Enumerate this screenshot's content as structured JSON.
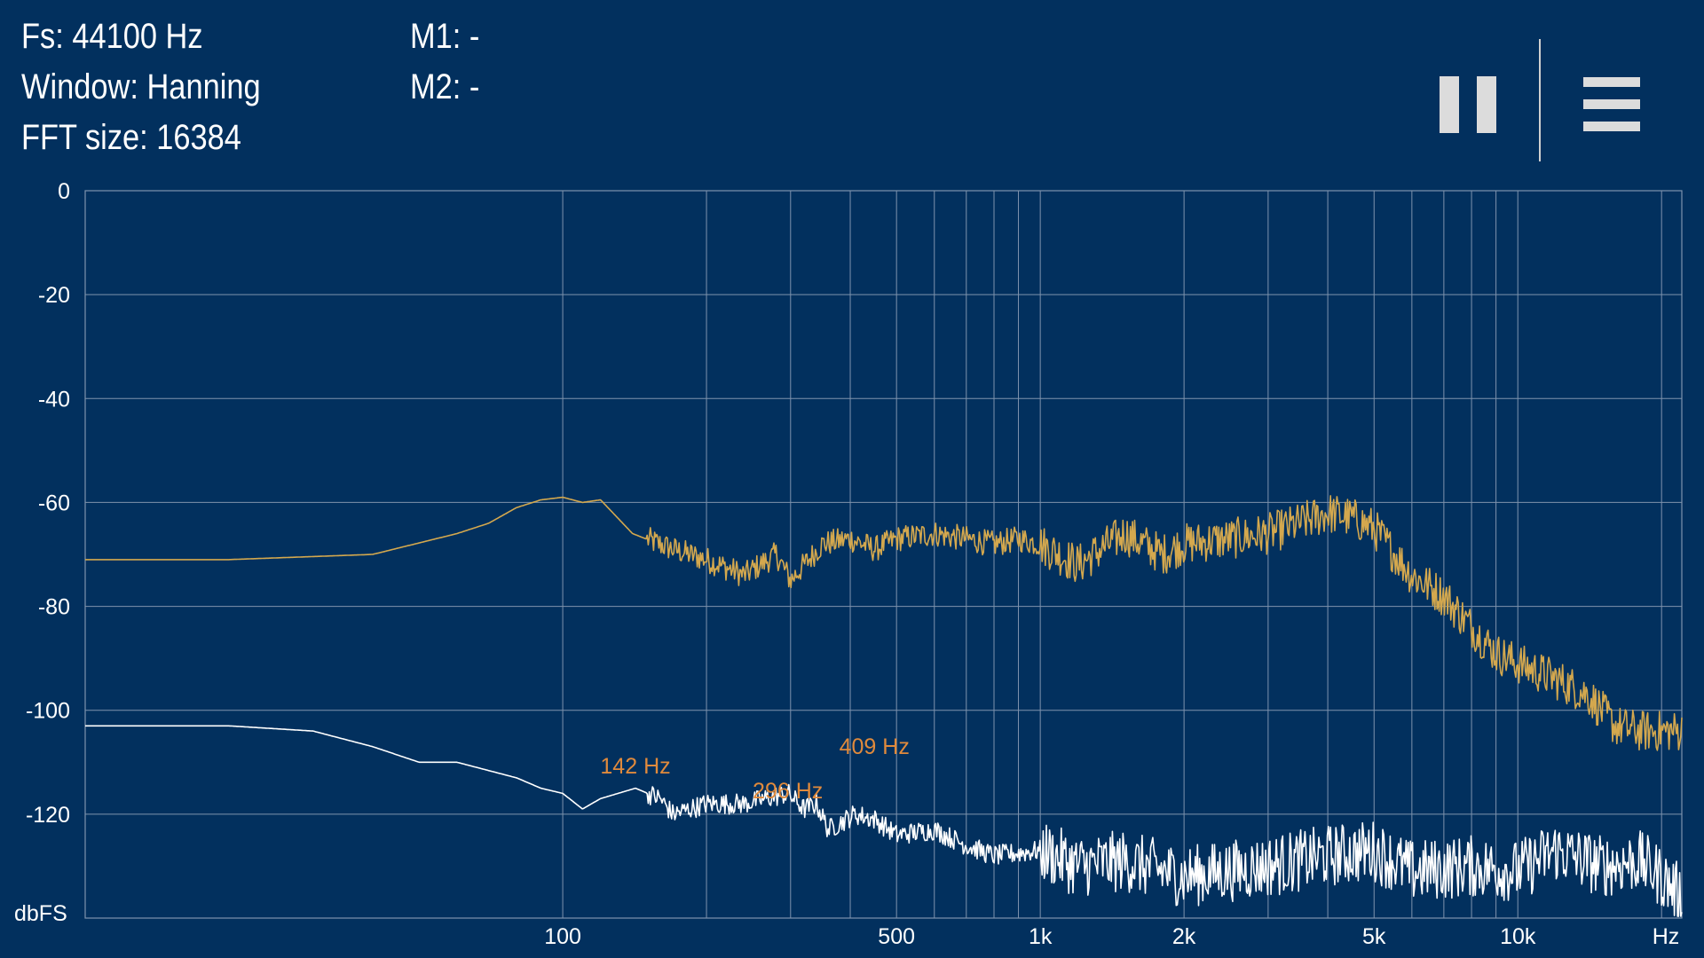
{
  "info": {
    "fs": "Fs: 44100 Hz",
    "window": "Window: Hanning",
    "fft_size": "FFT size: 16384",
    "m1": "M1: -",
    "m2": "M2: -"
  },
  "toolbar": {
    "pause_icon": "pause-icon",
    "menu_icon": "hamburger-menu-icon"
  },
  "colors": {
    "background": "#02305e",
    "grid": "#7f93ad",
    "series_1": "#d4a84e",
    "series_2": "#ffffff",
    "marker": "#e08a3c"
  },
  "chart_data": {
    "type": "line",
    "x_scale": "log",
    "xlim": [
      10,
      22050
    ],
    "ylim": [
      -140,
      0
    ],
    "ylabel": "dbFS",
    "xlabel": "Hz",
    "y_ticks": [
      0,
      -20,
      -40,
      -60,
      -80,
      -100,
      -120
    ],
    "y_tick_labels": [
      "0",
      "-20",
      "-40",
      "-60",
      "-80",
      "-100",
      "-120"
    ],
    "x_gridlines": [
      100,
      200,
      300,
      400,
      500,
      600,
      700,
      800,
      900,
      1000,
      2000,
      3000,
      4000,
      5000,
      6000,
      7000,
      8000,
      9000,
      10000,
      20000
    ],
    "x_tick_values": [
      100,
      500,
      1000,
      2000,
      5000,
      10000
    ],
    "x_tick_labels": [
      "100",
      "500",
      "1k",
      "2k",
      "5k",
      "10k"
    ],
    "grid": true,
    "series": [
      {
        "color": "#d4a84e",
        "x": [
          10,
          20,
          40,
          60,
          70,
          80,
          90,
          100,
          110,
          120,
          140,
          170,
          200,
          240,
          280,
          300,
          350,
          400,
          450,
          500,
          600,
          700,
          800,
          900,
          1000,
          1200,
          1500,
          1800,
          2000,
          2500,
          3000,
          3500,
          4000,
          4500,
          5000,
          6000,
          7000,
          8000,
          9000,
          10000,
          12000,
          14000,
          16000,
          18000,
          20000,
          22050
        ],
        "y": [
          -71,
          -71,
          -70,
          -66,
          -64,
          -61,
          -59.5,
          -59,
          -60,
          -59.5,
          -66,
          -69,
          -71,
          -74,
          -70,
          -75,
          -68,
          -67,
          -69,
          -67,
          -66,
          -67,
          -68,
          -67,
          -68,
          -72,
          -66,
          -70,
          -68,
          -67,
          -66,
          -64,
          -62,
          -63,
          -65,
          -74,
          -78,
          -84,
          -89,
          -91,
          -94,
          -97,
          -103,
          -104,
          -104,
          -104
        ]
      },
      {
        "color": "#ffffff",
        "x": [
          10,
          20,
          30,
          40,
          50,
          60,
          80,
          90,
          100,
          110,
          120,
          142,
          160,
          170,
          200,
          240,
          296,
          320,
          340,
          360,
          409,
          450,
          500,
          600,
          700,
          800,
          1000,
          1200,
          1500,
          2000,
          3000,
          4000,
          5000,
          6000,
          8000,
          10000,
          12000,
          15000,
          18000,
          20000,
          22050
        ],
        "y": [
          -103,
          -103,
          -104,
          -107,
          -110,
          -110,
          -113,
          -115,
          -116,
          -119,
          -117,
          -115,
          -117,
          -120,
          -118,
          -118,
          -116,
          -119,
          -118,
          -123,
          -120,
          -121,
          -124,
          -123,
          -126,
          -128,
          -127,
          -130,
          -129,
          -132,
          -130,
          -128,
          -127,
          -131,
          -130,
          -131,
          -127,
          -130,
          -129,
          -132,
          -136
        ]
      }
    ],
    "annotations": [
      {
        "x": 142,
        "y": -120,
        "label": "142 Hz"
      },
      {
        "x": 296,
        "y": -120,
        "label": "296 Hz"
      },
      {
        "x": 409,
        "y": -120,
        "label": "409 Hz"
      }
    ]
  }
}
